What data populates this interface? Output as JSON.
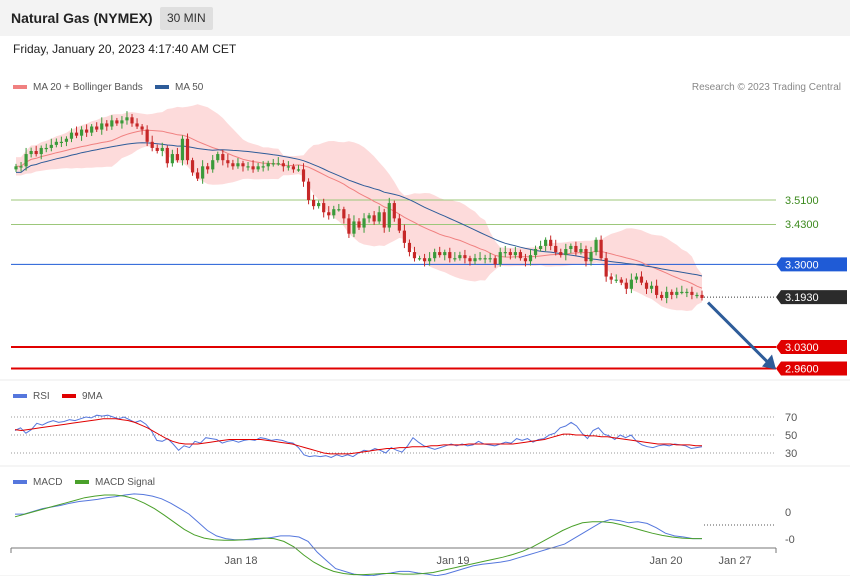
{
  "header": {
    "title": "Natural Gas (NYMEX)",
    "timeframe": "30 MIN"
  },
  "timestamp": "Friday, January 20, 2023 4:17:40 AM CET",
  "copyright": "Research © 2023 Trading Central",
  "colors": {
    "ma20": "#f08080",
    "ma50": "#2e5c99",
    "bands": "#fdd5d5",
    "bull": "#3a9a3a",
    "bear": "#c62828",
    "support": "#e00000",
    "resistance": "#9cc77a",
    "pivot": "#1f5bd6",
    "rsi": "#5577dd",
    "rsi9": "#e00000",
    "macd": "#5577dd",
    "macdSignal": "#4aa02a"
  },
  "chart_data": [
    {
      "type": "candlestick",
      "legend": [
        {
          "name": "MA 20 + Bollinger Bands",
          "color": "#f08080"
        },
        {
          "name": "MA 50",
          "color": "#2e5c99"
        }
      ],
      "ylim": [
        2.93,
        3.81
      ],
      "x_ticks": [
        "Jan 18",
        "Jan 19",
        "Jan 20",
        "Jan 27"
      ],
      "close_series": [
        3.62,
        3.62,
        3.66,
        3.67,
        3.66,
        3.68,
        3.68,
        3.69,
        3.7,
        3.7,
        3.71,
        3.73,
        3.72,
        3.74,
        3.73,
        3.75,
        3.74,
        3.76,
        3.75,
        3.77,
        3.76,
        3.77,
        3.78,
        3.76,
        3.75,
        3.74,
        3.7,
        3.68,
        3.67,
        3.68,
        3.63,
        3.66,
        3.64,
        3.71,
        3.64,
        3.6,
        3.58,
        3.62,
        3.61,
        3.64,
        3.66,
        3.64,
        3.63,
        3.62,
        3.63,
        3.62,
        3.62,
        3.61,
        3.62,
        3.62,
        3.63,
        3.63,
        3.63,
        3.62,
        3.62,
        3.61,
        3.61,
        3.57,
        3.51,
        3.49,
        3.5,
        3.47,
        3.46,
        3.48,
        3.48,
        3.45,
        3.4,
        3.44,
        3.42,
        3.45,
        3.46,
        3.44,
        3.47,
        3.42,
        3.5,
        3.45,
        3.41,
        3.37,
        3.34,
        3.32,
        3.32,
        3.31,
        3.32,
        3.34,
        3.33,
        3.34,
        3.32,
        3.32,
        3.33,
        3.32,
        3.31,
        3.32,
        3.32,
        3.32,
        3.32,
        3.3,
        3.34,
        3.34,
        3.33,
        3.34,
        3.32,
        3.31,
        3.33,
        3.35,
        3.36,
        3.38,
        3.36,
        3.34,
        3.33,
        3.35,
        3.36,
        3.34,
        3.35,
        3.31,
        3.34,
        3.38,
        3.32,
        3.26,
        3.25,
        3.25,
        3.24,
        3.22,
        3.25,
        3.26,
        3.24,
        3.22,
        3.23,
        3.2,
        3.19,
        3.21,
        3.2,
        3.21,
        3.21,
        3.21,
        3.2,
        3.2,
        3.19
      ],
      "pivot": 3.3,
      "last_price": 3.193,
      "resistance": [
        3.51,
        3.43
      ],
      "support": [
        3.03,
        2.96
      ],
      "target_arrow": {
        "from": 3.185,
        "to": 2.96
      }
    },
    {
      "type": "line",
      "legend": [
        {
          "name": "RSI",
          "color": "#5577dd"
        },
        {
          "name": "9MA",
          "color": "#e00000"
        }
      ],
      "y_ticks": [
        "70",
        "50",
        "30"
      ],
      "ylim": [
        20,
        80
      ],
      "rsi": [
        55,
        58,
        52,
        56,
        63,
        61,
        64,
        66,
        64,
        65,
        67,
        66,
        68,
        70,
        69,
        72,
        71,
        72,
        70,
        68,
        70,
        67,
        64,
        66,
        62,
        55,
        44,
        43,
        46,
        40,
        33,
        38,
        36,
        43,
        41,
        47,
        46,
        45,
        41,
        43,
        44,
        42,
        44,
        45,
        44,
        47,
        46,
        44,
        45,
        44,
        42,
        41,
        36,
        28,
        26,
        27,
        26,
        27,
        25,
        28,
        26,
        28,
        26,
        30,
        33,
        32,
        35,
        33,
        30,
        36,
        33,
        31,
        38,
        47,
        42,
        38,
        36,
        34,
        36,
        38,
        40,
        38,
        40,
        38,
        39,
        43,
        40,
        39,
        38,
        40,
        42,
        41,
        46,
        44,
        46,
        42,
        45,
        46,
        50,
        52,
        58,
        60,
        64,
        60,
        52,
        46,
        55,
        58,
        51,
        49,
        45,
        50,
        47,
        50,
        43,
        39,
        37,
        36,
        38,
        39,
        38,
        40,
        39,
        38,
        35,
        36,
        37
      ],
      "ma9": [
        56,
        55,
        56,
        57,
        58,
        59,
        60,
        61,
        62,
        63,
        64,
        65,
        66,
        67,
        68,
        68,
        68,
        67,
        66,
        64,
        61,
        58,
        54,
        50,
        46,
        43,
        41,
        40,
        40,
        40,
        41,
        42,
        43,
        44,
        45,
        45,
        45,
        45,
        45,
        45,
        44,
        43,
        42,
        41,
        40,
        38,
        36,
        34,
        32,
        30,
        29,
        29,
        29,
        29,
        30,
        31,
        32,
        33,
        34,
        35,
        35,
        36,
        36,
        37,
        37,
        37,
        38,
        38,
        39,
        39,
        39,
        39,
        40,
        40,
        40,
        40,
        40,
        40,
        40,
        40,
        41,
        42,
        43,
        44,
        45,
        47,
        49,
        51,
        51,
        50,
        50,
        49,
        49,
        48,
        48,
        47,
        46,
        45,
        44,
        43,
        42,
        41,
        40,
        40,
        40,
        39,
        39,
        39,
        38,
        38
      ]
    },
    {
      "type": "line",
      "legend": [
        {
          "name": "MACD",
          "color": "#5577dd"
        },
        {
          "name": "MACD Signal",
          "color": "#4aa02a"
        }
      ],
      "y_ticks": [
        "0",
        "-0"
      ],
      "ylim": [
        -0.11,
        0.07
      ],
      "macd": [
        0.02,
        0.02,
        0.025,
        0.03,
        0.033,
        0.036,
        0.04,
        0.043,
        0.045,
        0.047,
        0.05,
        0.052,
        0.055,
        0.057,
        0.056,
        0.053,
        0.048,
        0.04,
        0.03,
        0.02,
        0.005,
        -0.01,
        -0.02,
        -0.025,
        -0.027,
        -0.027,
        -0.027,
        -0.025,
        -0.023,
        -0.02,
        -0.02,
        -0.022,
        -0.03,
        -0.05,
        -0.065,
        -0.08,
        -0.085,
        -0.09,
        -0.092,
        -0.093,
        -0.09,
        -0.088,
        -0.085,
        -0.085,
        -0.088,
        -0.09,
        -0.093,
        -0.09,
        -0.085,
        -0.08,
        -0.075,
        -0.072,
        -0.07,
        -0.068,
        -0.065,
        -0.06,
        -0.055,
        -0.05,
        -0.045,
        -0.04,
        -0.035,
        -0.025,
        -0.015,
        -0.005,
        0.005,
        0.01,
        0.008,
        0.004,
        0.006,
        0.003,
        -0.005,
        -0.015,
        -0.02,
        -0.022,
        -0.025,
        -0.025
      ],
      "signal": [
        0.015,
        0.02,
        0.025,
        0.03,
        0.035,
        0.04,
        0.045,
        0.05,
        0.053,
        0.055,
        0.055,
        0.053,
        0.048,
        0.04,
        0.03,
        0.018,
        0.005,
        -0.008,
        -0.018,
        -0.024,
        -0.027,
        -0.028,
        -0.028,
        -0.027,
        -0.025,
        -0.024,
        -0.025,
        -0.03,
        -0.04,
        -0.055,
        -0.068,
        -0.078,
        -0.085,
        -0.089,
        -0.091,
        -0.091,
        -0.09,
        -0.089,
        -0.089,
        -0.09,
        -0.09,
        -0.089,
        -0.087,
        -0.083,
        -0.079,
        -0.075,
        -0.071,
        -0.067,
        -0.063,
        -0.059,
        -0.054,
        -0.048,
        -0.04,
        -0.03,
        -0.02,
        -0.01,
        -0.002,
        0.004,
        0.006,
        0.006,
        0.004,
        0,
        -0.005,
        -0.01,
        -0.015,
        -0.019,
        -0.022,
        -0.024,
        -0.025,
        -0.025
      ]
    }
  ]
}
